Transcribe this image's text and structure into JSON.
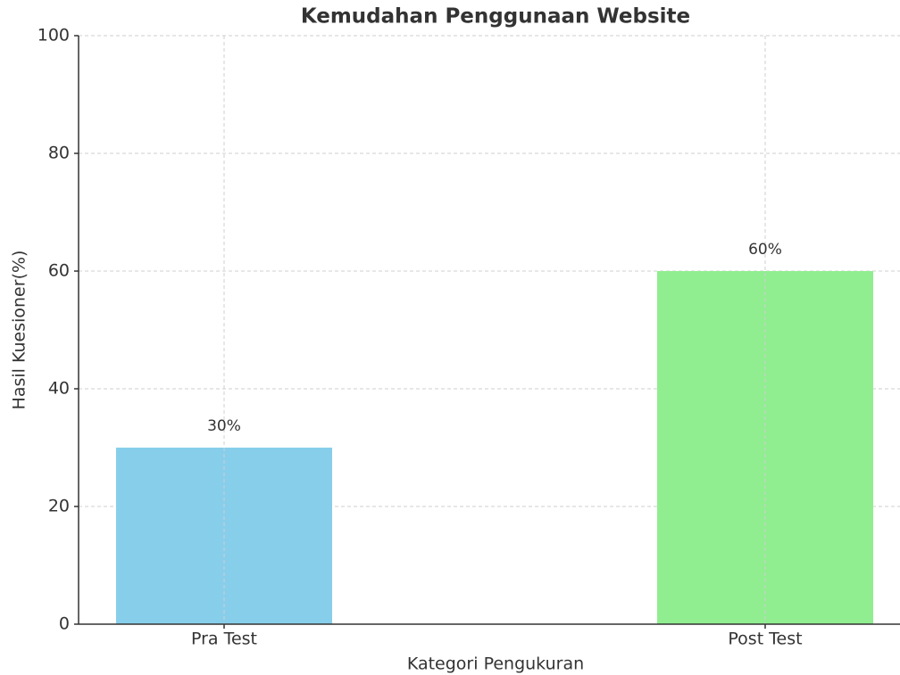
{
  "chart_data": {
    "type": "bar",
    "title": "Kemudahan Penggunaan Website",
    "xlabel": "Kategori Pengukuran",
    "ylabel": "Hasil Kuesioner(%)",
    "categories": [
      "Pra Test",
      "Post Test"
    ],
    "values": [
      30,
      60
    ],
    "value_labels": [
      "30%",
      "60%"
    ],
    "colors": [
      "#87ceeb",
      "#90ee90"
    ],
    "ylim": [
      0,
      100
    ],
    "yticks": [
      0,
      20,
      40,
      60,
      80,
      100
    ],
    "grid": true
  }
}
